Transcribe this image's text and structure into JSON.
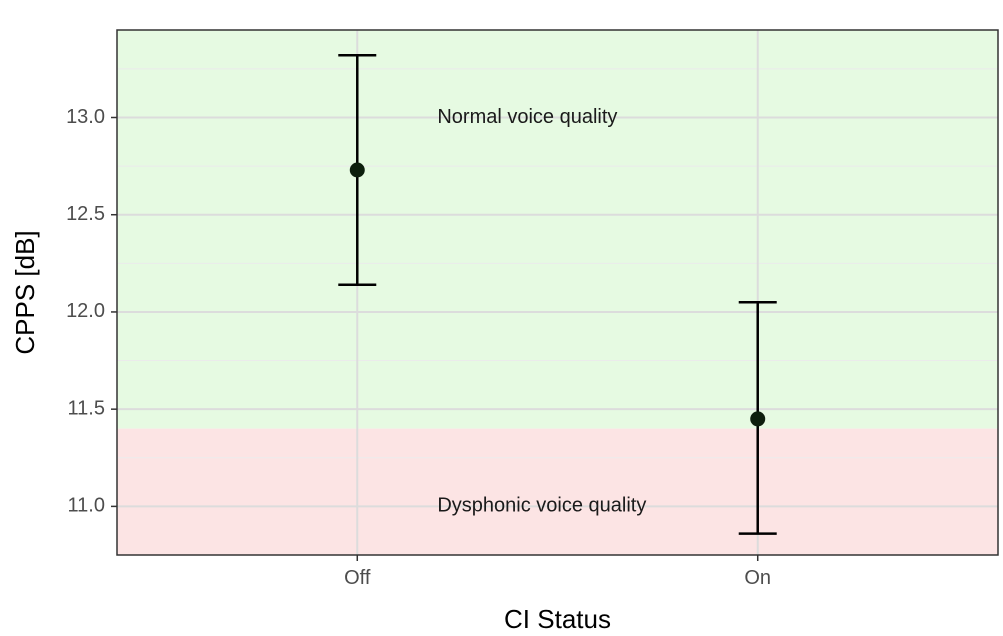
{
  "chart_data": {
    "type": "scatter",
    "xlabel": "CI Status",
    "ylabel": "CPPS [dB]",
    "categories": [
      "Off",
      "On"
    ],
    "points": [
      {
        "x": "Off",
        "y": 12.73,
        "lower": 12.14,
        "upper": 13.32
      },
      {
        "x": "On",
        "y": 11.45,
        "lower": 10.86,
        "upper": 12.05
      }
    ],
    "ylim": [
      10.75,
      13.45
    ],
    "yticks": [
      11.0,
      11.5,
      12.0,
      12.5,
      13.0
    ],
    "ytick_labels": [
      "11.0",
      "11.5",
      "12.0",
      "12.5",
      "13.0"
    ],
    "threshold": 11.4,
    "regions": [
      {
        "label": "Normal voice quality",
        "from": 11.4,
        "to": 13.45,
        "color": "#e6fae2"
      },
      {
        "label": "Dysphonic voice quality",
        "from": 10.75,
        "to": 11.4,
        "color": "#fce4e4"
      }
    ],
    "annotations": [
      {
        "text": "Normal voice quality",
        "x": 1.2,
        "y": 13.0
      },
      {
        "text": "Dysphonic voice quality",
        "x": 1.2,
        "y": 11.0
      }
    ],
    "grid": true,
    "point_color": "#0d1f0d",
    "legend": "none"
  }
}
